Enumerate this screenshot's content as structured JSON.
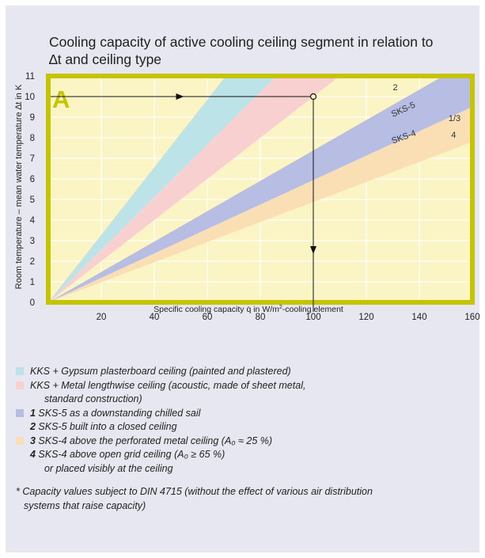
{
  "title_line1": "Cooling capacity of active cooling ceiling segment in relation to",
  "title_line2": "∆t and ceiling type",
  "chart_data": {
    "type": "area",
    "panel_letter": "A",
    "xlabel_prefix": "Specific cooling capacity q̇ in W/m",
    "xlabel_sup": "2",
    "xlabel_suffix": "-cooling element",
    "ylabel": "Room temperature – mean water temperature ∆t in K",
    "xlim": [
      0,
      160
    ],
    "ylim": [
      0,
      11
    ],
    "xticks": [
      20,
      40,
      60,
      80,
      100,
      120,
      140,
      160
    ],
    "yticks": [
      0,
      1,
      2,
      3,
      4,
      5,
      6,
      7,
      8,
      9,
      10,
      11
    ],
    "series": [
      {
        "name": "KKS + plasterboard",
        "color": "#bce3e8",
        "lower": [
          [
            0,
            0
          ],
          [
            86,
            11
          ]
        ],
        "upper": [
          [
            0,
            0
          ],
          [
            67,
            11
          ]
        ]
      },
      {
        "name": "KKS + metal ceilings",
        "color": "#f7d0cf",
        "lower": [
          [
            0,
            0
          ],
          [
            110,
            11
          ]
        ],
        "upper": [
          [
            0,
            0
          ],
          [
            86,
            11
          ]
        ]
      },
      {
        "name": "SKS-5",
        "color": "#b7bde3",
        "lower": [
          [
            0,
            0
          ],
          [
            160,
            9.5
          ]
        ],
        "upper": [
          [
            0,
            0
          ],
          [
            149,
            11
          ],
          [
            160,
            11
          ]
        ]
      },
      {
        "name": "SKS-4",
        "color": "#fadfb4",
        "lower": [
          [
            0,
            0
          ],
          [
            160,
            7.8
          ]
        ],
        "upper": [
          [
            0,
            0
          ],
          [
            160,
            9.5
          ]
        ]
      }
    ],
    "annotations": [
      {
        "text": "2",
        "x": 130,
        "y": 10.3
      },
      {
        "text": "SKS-5",
        "x": 130,
        "y": 9.0,
        "rotate": -24
      },
      {
        "text": "1/3",
        "x": 151,
        "y": 8.8
      },
      {
        "text": "SKS-4",
        "x": 130,
        "y": 7.7,
        "rotate": -20
      },
      {
        "text": "4",
        "x": 152,
        "y": 8.0
      }
    ],
    "reference": {
      "x": 100,
      "y": 10
    }
  },
  "legend": [
    {
      "color": "#bce3e8",
      "number": "",
      "text": "KKS + Gypsum plasterboard ceiling (painted and plastered)"
    },
    {
      "color": "#f7d0cf",
      "number": "",
      "text": "KKS + Metal lengthwise ceiling  (acoustic, made of sheet metal,"
    },
    {
      "color": "",
      "number": "",
      "text": "standard construction)"
    },
    {
      "color": "#b7bde3",
      "number": "1",
      "text": " SKS-5 as a downstanding chilled sail"
    },
    {
      "color": "",
      "number": "2",
      "text": " SKS-5 built into a closed ceiling"
    },
    {
      "color": "#fadfb4",
      "number": "3",
      "text": " SKS-4 above the perforated metal ceiling (A₀ ≈ 25 %)"
    },
    {
      "color": "",
      "number": "4",
      "text": " SKS-4 above open grid ceiling (A₀ ≥ 65 %)"
    },
    {
      "color": "",
      "number": "",
      "text": "or placed visibly at the ceiling"
    }
  ],
  "note_line1": "* Capacity values subject to DIN 4715 (without the effect of various air distribution",
  "note_line2": "systems that raise capacity)"
}
